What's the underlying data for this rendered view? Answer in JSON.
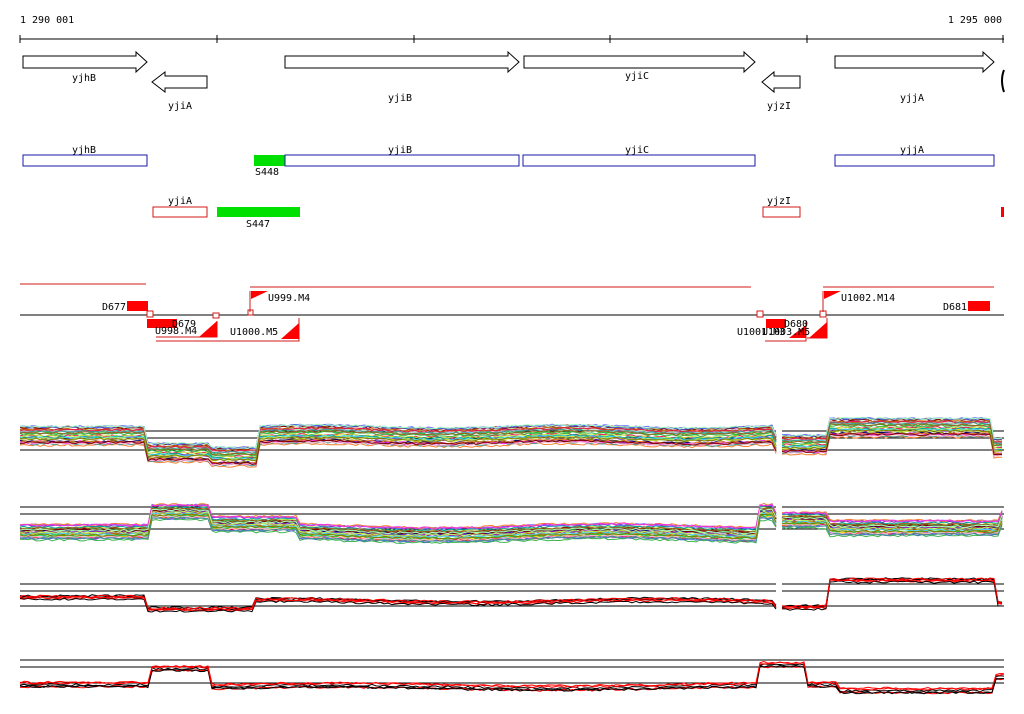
{
  "ruler": {
    "start_label": "1 290 001",
    "end_label": "1 295 000"
  },
  "gene_arrows": [
    {
      "label": "yjhB",
      "strand": "+"
    },
    {
      "label": "yjiA",
      "strand": "-"
    },
    {
      "label": "yjiB",
      "strand": "+"
    },
    {
      "label": "yjiC",
      "strand": "+"
    },
    {
      "label": "yjzI",
      "strand": "-"
    },
    {
      "label": "yjjA",
      "strand": "+"
    }
  ],
  "cds_boxes_forward": [
    "yjhB",
    "yjiB",
    "yjiC",
    "yjjA"
  ],
  "cds_boxes_reverse": [
    "yjiA",
    "yjzI"
  ],
  "feature_labels": {
    "s448": "S448",
    "s447": "S447",
    "d677": "D677",
    "d679": "D679",
    "d680": "D680",
    "d681": "D681",
    "u998": "U998.M4",
    "u999": "U999.M4",
    "u1000": "U1000.M5",
    "u1001": "U1001.M3",
    "u1003": "U1003.M5",
    "u1002": "U1002.M14"
  },
  "colors": {
    "forward_box": "#1a1aa8",
    "reverse_box": "#d01818",
    "highlight": "#00e000",
    "marker": "#ff0000",
    "axis": "#000000"
  }
}
